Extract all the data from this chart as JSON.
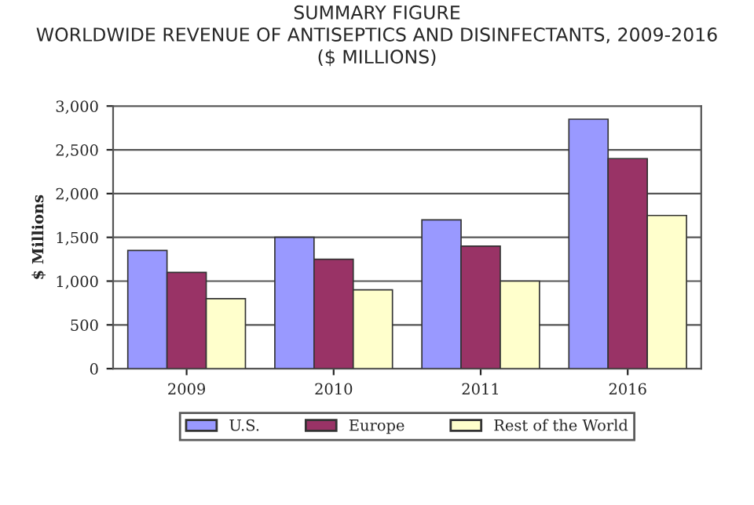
{
  "chart_data": {
    "type": "bar",
    "title": "SUMMARY FIGURE\nWORLDWIDE REVENUE OF ANTISEPTICS AND DISINFECTANTS, 2009-2016\n($ MILLIONS)",
    "ylabel": "$ Millions",
    "categories": [
      "2009",
      "2010",
      "2011",
      "2016"
    ],
    "series": [
      {
        "name": "U.S.",
        "color": "#9999ff",
        "values": [
          1350,
          1500,
          1700,
          2850
        ]
      },
      {
        "name": "Europe",
        "color": "#993366",
        "values": [
          1100,
          1250,
          1400,
          2400
        ]
      },
      {
        "name": "Rest of the World",
        "color": "#ffffcc",
        "values": [
          800,
          900,
          1000,
          1750
        ]
      }
    ],
    "ylim": [
      0,
      3000
    ],
    "yticks": [
      {
        "value": 0,
        "label": "0"
      },
      {
        "value": 500,
        "label": "500"
      },
      {
        "value": 1000,
        "label": "1,000"
      },
      {
        "value": 1500,
        "label": "1,500"
      },
      {
        "value": 2000,
        "label": "2,000"
      },
      {
        "value": 2500,
        "label": "2,500"
      },
      {
        "value": 3000,
        "label": "3,000"
      }
    ],
    "grid": "y",
    "legend": "bottom"
  }
}
